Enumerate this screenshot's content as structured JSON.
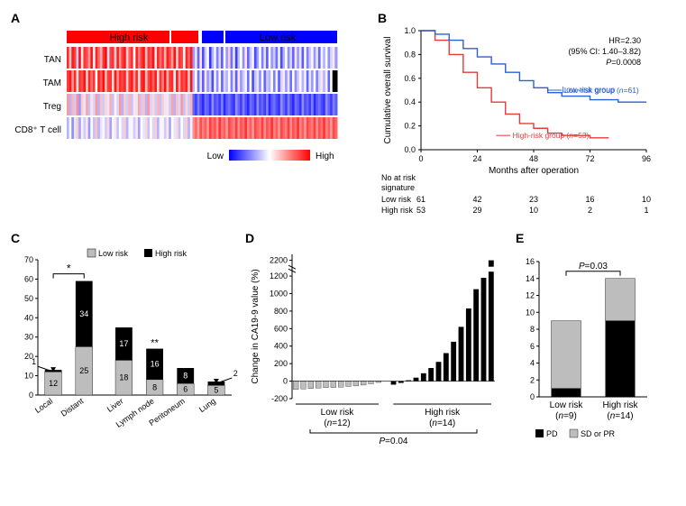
{
  "panelA": {
    "label": "A",
    "groupBar": {
      "highRisk": {
        "label": "High risk",
        "color": "#ff0000"
      },
      "lowRisk": {
        "label": "Low risk",
        "color": "#0000ff"
      }
    },
    "rows": [
      "TAN",
      "TAM",
      "Treg",
      "CD8⁺ T cell"
    ],
    "legend": {
      "lowLabel": "Low",
      "highLabel": "High"
    },
    "colors": {
      "low": "#0000ff",
      "mid": "#ffffff",
      "high": "#ff0000"
    },
    "nCols": 114,
    "groupSplit": 53,
    "heatmap": {
      "TAN": [
        0.92,
        0.6,
        0.95,
        0.88,
        0.4,
        0.97,
        0.55,
        0.9,
        0.85,
        0.7,
        0.96,
        0.5,
        0.93,
        0.8,
        0.65,
        0.9,
        0.98,
        0.45,
        0.87,
        0.9,
        0.58,
        0.94,
        0.72,
        0.89,
        0.95,
        0.6,
        0.82,
        0.91,
        0.5,
        0.93,
        0.75,
        0.88,
        0.96,
        0.62,
        0.9,
        0.84,
        0.97,
        0.55,
        0.92,
        0.78,
        0.9,
        0.65,
        0.94,
        0.85,
        0.7,
        0.96,
        0.58,
        0.9,
        0.87,
        0.5,
        0.93,
        0.8,
        0.95,
        0.3,
        0.45,
        0.2,
        0.55,
        0.15,
        0.4,
        0.5,
        0.1,
        0.35,
        0.48,
        0.25,
        0.42,
        0.18,
        0.5,
        0.3,
        0.6,
        0.22,
        0.45,
        0.12,
        0.38,
        0.5,
        0.28,
        0.55,
        0.2,
        0.4,
        0.48,
        0.15,
        0.32,
        0.5,
        0.25,
        0.45,
        0.18,
        0.52,
        0.3,
        0.4,
        0.22,
        0.48,
        0.15,
        0.35,
        0.5,
        0.28,
        0.42,
        0.2,
        0.55,
        0.3,
        0.45,
        0.18,
        0.5,
        0.25,
        0.4,
        0.52,
        0.3,
        0.45,
        0.2,
        0.48,
        0.35,
        0.5,
        0.28,
        0.42,
        0.55,
        0.3
      ],
      "TAM": [
        0.88,
        0.95,
        0.7,
        0.92,
        0.55,
        0.9,
        0.85,
        0.96,
        0.6,
        0.93,
        0.78,
        0.9,
        0.5,
        0.94,
        0.82,
        0.97,
        0.65,
        0.88,
        0.9,
        0.58,
        0.95,
        0.72,
        0.91,
        0.86,
        0.93,
        0.6,
        0.89,
        0.95,
        0.7,
        0.92,
        0.55,
        0.9,
        0.96,
        0.62,
        0.87,
        0.93,
        0.8,
        0.94,
        0.58,
        0.9,
        0.75,
        0.97,
        0.65,
        0.88,
        0.92,
        0.5,
        0.95,
        0.7,
        0.9,
        0.85,
        0.93,
        0.6,
        0.96,
        0.35,
        0.5,
        0.22,
        0.45,
        0.18,
        0.55,
        0.3,
        0.4,
        0.15,
        0.48,
        0.28,
        0.52,
        0.2,
        0.42,
        0.35,
        0.5,
        0.25,
        0.45,
        0.18,
        0.55,
        0.3,
        0.4,
        0.48,
        0.22,
        0.5,
        0.15,
        0.38,
        0.45,
        0.28,
        0.52,
        0.2,
        0.4,
        0.35,
        0.5,
        0.25,
        0.48,
        0.18,
        0.42,
        0.55,
        0.3,
        0.45,
        0.22,
        0.5,
        0.28,
        0.4,
        0.52,
        0.35,
        0.48,
        0.2,
        0.45,
        0.3,
        0.5,
        0.25,
        0.42,
        0.55,
        0.35,
        0.48,
        0.2,
        0.5
      ],
      "Treg": [
        0.7,
        0.35,
        0.65,
        0.4,
        0.72,
        0.3,
        0.6,
        0.45,
        0.68,
        0.38,
        0.55,
        0.42,
        0.7,
        0.35,
        0.62,
        0.4,
        0.58,
        0.45,
        0.66,
        0.38,
        0.52,
        0.42,
        0.7,
        0.35,
        0.6,
        0.4,
        0.65,
        0.38,
        0.55,
        0.45,
        0.68,
        0.4,
        0.62,
        0.35,
        0.7,
        0.42,
        0.58,
        0.4,
        0.65,
        0.38,
        0.6,
        0.45,
        0.55,
        0.4,
        0.68,
        0.35,
        0.62,
        0.42,
        0.7,
        0.38,
        0.58,
        0.4,
        0.65,
        0.2,
        0.12,
        0.25,
        0.15,
        0.08,
        0.22,
        0.18,
        0.1,
        0.28,
        0.15,
        0.2,
        0.12,
        0.25,
        0.08,
        0.18,
        0.22,
        0.15,
        0.1,
        0.28,
        0.2,
        0.12,
        0.25,
        0.15,
        0.08,
        0.22,
        0.18,
        0.1,
        0.28,
        0.15,
        0.2,
        0.12,
        0.25,
        0.08,
        0.18,
        0.22,
        0.15,
        0.1,
        0.28,
        0.2,
        0.12,
        0.25,
        0.15,
        0.08,
        0.22,
        0.18,
        0.1,
        0.28,
        0.15,
        0.2,
        0.12,
        0.25,
        0.08,
        0.18,
        0.22,
        0.15,
        0.1,
        0.28,
        0.2,
        0.12,
        0.25,
        0.18
      ],
      "CD8+ T cell": [
        0.35,
        0.5,
        0.28,
        0.45,
        0.6,
        0.32,
        0.48,
        0.4,
        0.55,
        0.3,
        0.5,
        0.38,
        0.62,
        0.35,
        0.45,
        0.52,
        0.4,
        0.58,
        0.32,
        0.48,
        0.55,
        0.38,
        0.5,
        0.42,
        0.6,
        0.35,
        0.48,
        0.52,
        0.4,
        0.55,
        0.32,
        0.5,
        0.45,
        0.58,
        0.38,
        0.5,
        0.42,
        0.6,
        0.35,
        0.48,
        0.52,
        0.4,
        0.55,
        0.32,
        0.5,
        0.45,
        0.58,
        0.38,
        0.5,
        0.42,
        0.6,
        0.35,
        0.48,
        0.72,
        0.8,
        0.68,
        0.85,
        0.75,
        0.82,
        0.7,
        0.88,
        0.78,
        0.84,
        0.72,
        0.9,
        0.76,
        0.82,
        0.7,
        0.86,
        0.8,
        0.75,
        0.88,
        0.72,
        0.84,
        0.78,
        0.9,
        0.74,
        0.82,
        0.7,
        0.86,
        0.8,
        0.76,
        0.88,
        0.72,
        0.84,
        0.78,
        0.9,
        0.74,
        0.82,
        0.7,
        0.86,
        0.8,
        0.76,
        0.88,
        0.72,
        0.84,
        0.78,
        0.9,
        0.74,
        0.82,
        0.7,
        0.86,
        0.8,
        0.76,
        0.88,
        0.72,
        0.84,
        0.78,
        0.9,
        0.74,
        0.82,
        0.7,
        0.86,
        0.8
      ]
    }
  },
  "panelB": {
    "label": "B",
    "ylabel": "Cumulative overall survival",
    "xlabel": "Months after operation",
    "xticks": [
      0,
      24,
      48,
      72,
      96
    ],
    "yticks": [
      0,
      0.2,
      0.4,
      0.6,
      0.8,
      1.0
    ],
    "stats": [
      "HR=2.30",
      "(95% CI: 1.40–3.82)",
      "P=0.0008"
    ],
    "series": {
      "low": {
        "label": "Low-risk group (n=61)",
        "color": "#2b5fd9",
        "points": [
          [
            0,
            1.0
          ],
          [
            6,
            0.97
          ],
          [
            12,
            0.92
          ],
          [
            18,
            0.85
          ],
          [
            24,
            0.78
          ],
          [
            30,
            0.72
          ],
          [
            36,
            0.65
          ],
          [
            42,
            0.58
          ],
          [
            48,
            0.52
          ],
          [
            54,
            0.48
          ],
          [
            60,
            0.45
          ],
          [
            72,
            0.42
          ],
          [
            84,
            0.4
          ],
          [
            96,
            0.4
          ]
        ]
      },
      "high": {
        "label": "High-risk group (n=53)",
        "color": "#e43b3b",
        "points": [
          [
            0,
            1.0
          ],
          [
            6,
            0.92
          ],
          [
            12,
            0.8
          ],
          [
            18,
            0.65
          ],
          [
            24,
            0.52
          ],
          [
            30,
            0.4
          ],
          [
            36,
            0.3
          ],
          [
            42,
            0.22
          ],
          [
            48,
            0.18
          ],
          [
            54,
            0.14
          ],
          [
            60,
            0.12
          ],
          [
            72,
            0.1
          ],
          [
            80,
            0.1
          ]
        ]
      }
    },
    "riskTable": {
      "header": "No at risk\nsignature",
      "rows": [
        {
          "label": "Low risk",
          "vals": [
            61,
            42,
            23,
            16,
            10
          ]
        },
        {
          "label": "High risk",
          "vals": [
            53,
            29,
            10,
            2,
            1
          ]
        }
      ]
    },
    "fontsize": {
      "axis": 11,
      "stats": 10,
      "label": 11
    }
  },
  "panelC": {
    "label": "C",
    "type": "stacked-bar",
    "ylim": [
      0,
      70
    ],
    "ytick_step": 10,
    "legend": [
      {
        "label": "Low risk",
        "color": "#bdbdbd"
      },
      {
        "label": "High risk",
        "color": "#000000"
      }
    ],
    "groups": [
      {
        "cat": "Local",
        "low": 12,
        "high": 1,
        "annot": {
          "side": "top-left",
          "text": "1"
        }
      },
      {
        "cat": "Distant",
        "low": 25,
        "high": 34
      },
      {
        "cat": "Liver",
        "low": 18,
        "high": 17
      },
      {
        "cat": "Lymph node",
        "low": 8,
        "high": 16,
        "sig": "**"
      },
      {
        "cat": "Peritoneum",
        "low": 6,
        "high": 8
      },
      {
        "cat": "Lung",
        "low": 5,
        "high": 2,
        "annot": {
          "side": "top-right",
          "text": "2"
        }
      }
    ],
    "groupSigs": [
      {
        "from": 0,
        "to": 1,
        "text": "*"
      }
    ],
    "bar_width": 0.55,
    "colors": {
      "low": "#bdbdbd",
      "high": "#000000",
      "text_in_high": "#ffffff",
      "text_in_low": "#000000"
    },
    "gap_after": 1
  },
  "panelD": {
    "label": "D",
    "ylabel": "Change in CA19-9 value (%)",
    "yticks_low": [
      -200,
      0,
      200,
      400,
      600,
      800,
      1000,
      1200
    ],
    "yticks_high": [
      2200
    ],
    "axis_break": true,
    "groups": {
      "low": {
        "label": "Low risk",
        "n": 12,
        "color": "#bdbdbd",
        "values": [
          -95,
          -90,
          -85,
          -80,
          -75,
          -72,
          -68,
          -60,
          -55,
          -45,
          -30,
          -15
        ]
      },
      "high": {
        "label": "High risk",
        "n": 14,
        "color": "#000000",
        "values": [
          -40,
          -20,
          10,
          40,
          90,
          150,
          220,
          320,
          450,
          620,
          830,
          1050,
          1180,
          2200
        ]
      }
    },
    "stat": "P=0.04",
    "bar_width": 0.7
  },
  "panelE": {
    "label": "E",
    "type": "stacked-bar",
    "ylim": [
      0,
      16
    ],
    "ytick_step": 2,
    "stat": "P=0.03",
    "legend": [
      {
        "label": "PD",
        "color": "#000000"
      },
      {
        "label": "SD or PR",
        "color": "#bdbdbd"
      }
    ],
    "bars": [
      {
        "cat": "Low risk",
        "n": 9,
        "pd": 1,
        "sdpr": 8
      },
      {
        "cat": "High risk",
        "n": 14,
        "pd": 9,
        "sdpr": 5
      }
    ],
    "colors": {
      "pd": "#000000",
      "sdpr": "#bdbdbd"
    },
    "bar_width": 0.55
  }
}
